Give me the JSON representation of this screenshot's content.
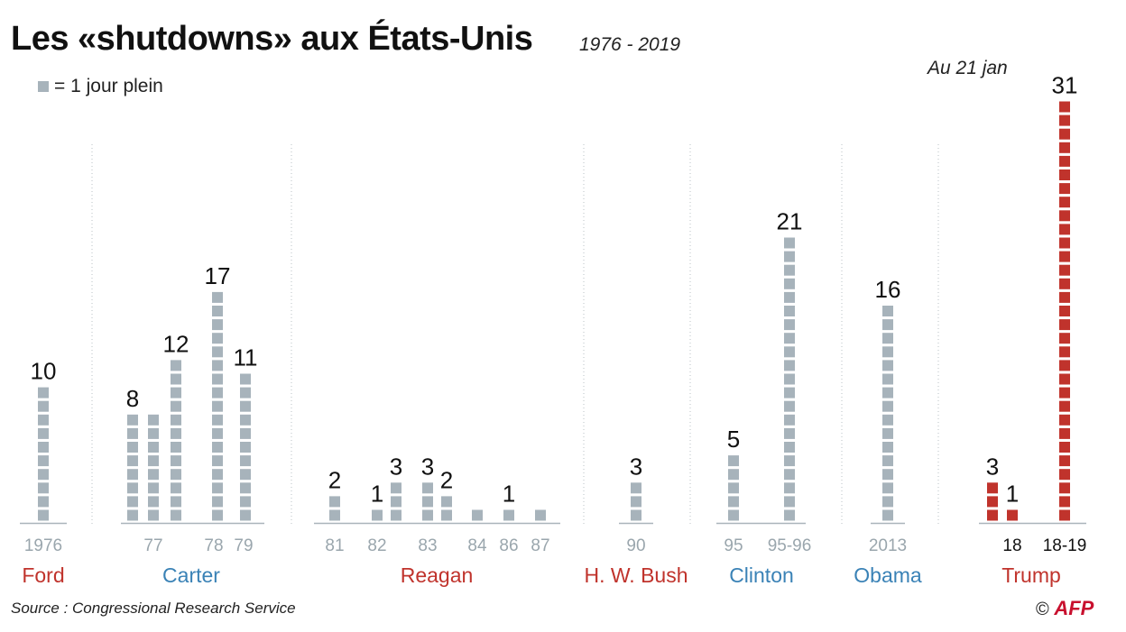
{
  "header": {
    "title": "Les «shutdowns» aux États-Unis",
    "period": "1976 - 2019",
    "legend": "= 1 jour plein",
    "note": "Au 21 jan"
  },
  "footer": {
    "source": "Source : Congressional Research Service",
    "copyright": "©",
    "agency": "AFP"
  },
  "colors": {
    "gray": "#a7b3bb",
    "red": "#c0332c",
    "blue": "#3a82b6",
    "axis": "#aab4bb",
    "text": "#222222"
  },
  "chart_data": {
    "type": "bar",
    "unit": "jours",
    "presidents": [
      {
        "name": "Ford",
        "color": "red"
      },
      {
        "name": "Carter",
        "color": "blue"
      },
      {
        "name": "Reagan",
        "color": "red"
      },
      {
        "name": "H. W. Bush",
        "color": "red"
      },
      {
        "name": "Clinton",
        "color": "blue"
      },
      {
        "name": "Obama",
        "color": "blue"
      },
      {
        "name": "Trump",
        "color": "red"
      }
    ],
    "bars": [
      {
        "president": "Ford",
        "value": 10,
        "tick": "1976",
        "label": "10"
      },
      {
        "president": "Carter",
        "value": 8,
        "tick": "",
        "label": "8"
      },
      {
        "president": "Carter",
        "value": 8,
        "tick": "77",
        "label": ""
      },
      {
        "president": "Carter",
        "value": 12,
        "tick": "",
        "label": "12"
      },
      {
        "president": "Carter",
        "value": 17,
        "tick": "78",
        "label": "17"
      },
      {
        "president": "Carter",
        "value": 11,
        "tick": "79",
        "label": "11"
      },
      {
        "president": "Reagan",
        "value": 2,
        "tick": "81",
        "label": "2"
      },
      {
        "president": "Reagan",
        "value": 1,
        "tick": "82",
        "label": "1"
      },
      {
        "president": "Reagan",
        "value": 3,
        "tick": "",
        "label": "3"
      },
      {
        "president": "Reagan",
        "value": 3,
        "tick": "83",
        "label": "3"
      },
      {
        "president": "Reagan",
        "value": 2,
        "tick": "",
        "label": "2"
      },
      {
        "president": "Reagan",
        "value": 1,
        "tick": "84",
        "label": ""
      },
      {
        "president": "Reagan",
        "value": 1,
        "tick": "86",
        "label": "1"
      },
      {
        "president": "Reagan",
        "value": 1,
        "tick": "87",
        "label": ""
      },
      {
        "president": "H. W. Bush",
        "value": 3,
        "tick": "90",
        "label": "3"
      },
      {
        "president": "Clinton",
        "value": 5,
        "tick": "95",
        "label": "5"
      },
      {
        "president": "Clinton",
        "value": 21,
        "tick": "95-96",
        "label": "21"
      },
      {
        "president": "Obama",
        "value": 16,
        "tick": "2013",
        "label": "16"
      },
      {
        "president": "Trump",
        "value": 3,
        "tick": "",
        "label": "3"
      },
      {
        "president": "Trump",
        "value": 1,
        "tick": "18",
        "label": "1"
      },
      {
        "president": "Trump",
        "value": 31,
        "tick": "18-19",
        "label": "31"
      }
    ]
  }
}
